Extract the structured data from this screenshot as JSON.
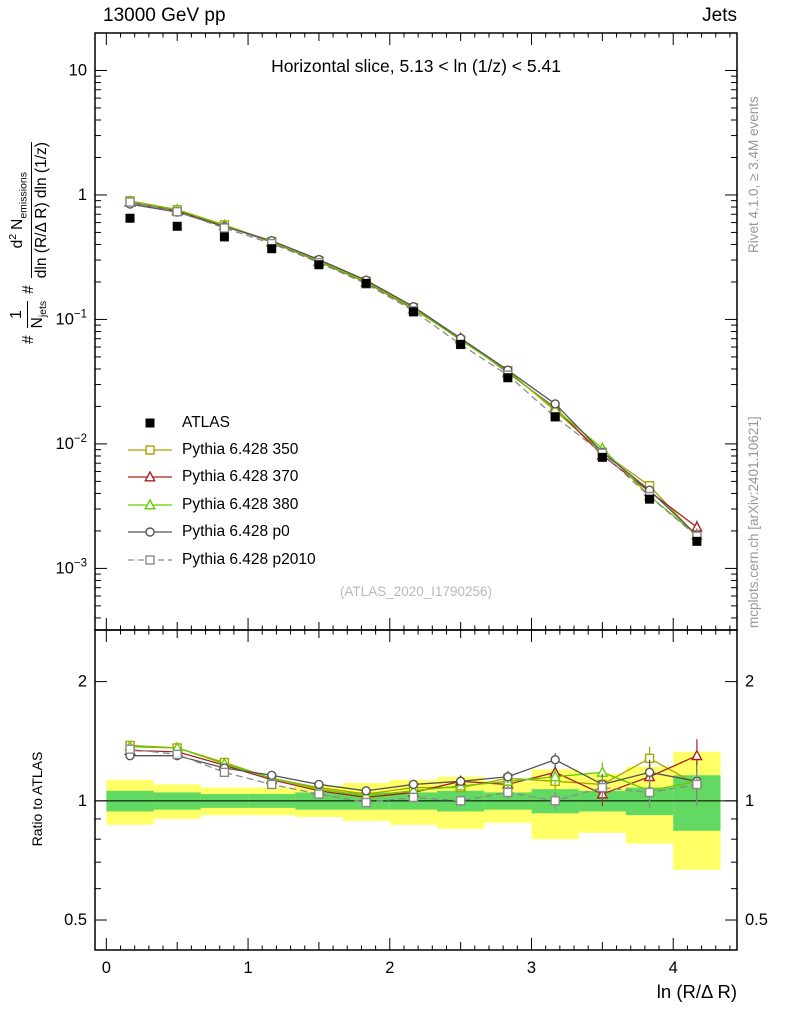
{
  "header": {
    "left": "13000 GeV pp",
    "right": "Jets"
  },
  "watermark": "(ATLAS_2020_I1790256)",
  "side_notes": {
    "top_right": "Rivet 4.1.0, ≥ 3.4M events",
    "bottom_right": "mcplots.cern.ch [arXiv:2401.10621]"
  },
  "axes": {
    "ylabel": {
      "hash1": "#",
      "frac1_num": "1",
      "frac1_den_base": "N",
      "frac1_den_sub": "jets",
      "hash2": "#",
      "frac2_num_a": "d",
      "frac2_num_sup": "2",
      "frac2_num_b": "N",
      "frac2_num_sub": "emissions",
      "frac2_den": "dln (R/Δ R) dln (1/z)",
      "flat": "1/N_jets d²N_emissions / dln (R/Δ R) dln (1/z)"
    }
  },
  "chart_data": {
    "type": "line",
    "title": "Horizontal slice, 5.13 < ln (1/z) < 5.41",
    "xlabel": "ln (R/Δ R)",
    "ylabel": "1/N_jets d²N_emissions / dln (R/Δ R) dln (1/z)",
    "xlim": [
      -0.08,
      4.45
    ],
    "bin_half_width": 0.1667,
    "x": [
      0.167,
      0.5,
      0.833,
      1.167,
      1.5,
      1.833,
      2.167,
      2.5,
      2.833,
      3.167,
      3.5,
      3.833,
      4.167
    ],
    "x_ticks": [
      {
        "v": 0,
        "t": "0"
      },
      {
        "v": 1,
        "t": "1"
      },
      {
        "v": 2,
        "t": "2"
      },
      {
        "v": 3,
        "t": "3"
      },
      {
        "v": 4,
        "t": "4"
      }
    ],
    "main_y_ticks": [
      {
        "v": 10,
        "t": "10"
      },
      {
        "v": 1,
        "t": "1"
      },
      {
        "v": 0.1,
        "t": "10",
        "e": "−1"
      },
      {
        "v": 0.01,
        "t": "10",
        "e": "−2"
      },
      {
        "v": 0.001,
        "t": "10",
        "e": "−3"
      }
    ],
    "ratio_y_ticks": [
      {
        "v": 2,
        "t": "2"
      },
      {
        "v": 1,
        "t": "1"
      },
      {
        "v": 0.5,
        "t": "0.5"
      }
    ],
    "atlas": {
      "name": "ATLAS",
      "color": "#000000",
      "marker": "filled-square",
      "values": [
        0.65,
        0.56,
        0.46,
        0.37,
        0.275,
        0.195,
        0.115,
        0.063,
        0.034,
        0.0165,
        0.0078,
        0.0036,
        0.00165
      ]
    },
    "series": [
      {
        "name": "Pythia 6.428 350",
        "color": "#a8a400",
        "marker": "open-square",
        "line": "solid",
        "ratio": [
          1.38,
          1.36,
          1.25,
          1.14,
          1.08,
          1.04,
          1.08,
          1.08,
          1.14,
          1.12,
          1.1,
          1.28,
          1.1
        ]
      },
      {
        "name": "Pythia 6.428 370",
        "color": "#aa2222",
        "marker": "open-triangle",
        "line": "solid",
        "ratio": [
          1.34,
          1.33,
          1.23,
          1.13,
          1.06,
          1.02,
          1.05,
          1.12,
          1.1,
          1.18,
          1.04,
          1.15,
          1.3
        ]
      },
      {
        "name": "Pythia 6.428 380",
        "color": "#66cc00",
        "marker": "open-triangle",
        "line": "solid",
        "ratio": [
          1.37,
          1.36,
          1.24,
          1.14,
          1.07,
          1.03,
          1.06,
          1.09,
          1.12,
          1.15,
          1.18,
          1.06,
          1.12
        ]
      },
      {
        "name": "Pythia 6.428 p0",
        "color": "#555555",
        "marker": "open-circle",
        "line": "solid",
        "ratio": [
          1.3,
          1.3,
          1.21,
          1.16,
          1.1,
          1.06,
          1.1,
          1.12,
          1.15,
          1.27,
          1.1,
          1.18,
          1.12
        ]
      },
      {
        "name": "Pythia 6.428 p2010",
        "color": "#8a8a8a",
        "marker": "open-square",
        "line": "dashed",
        "ratio": [
          1.35,
          1.31,
          1.18,
          1.1,
          1.04,
          0.99,
          1.02,
          1.0,
          1.05,
          1.0,
          1.08,
          1.05,
          1.1
        ]
      }
    ],
    "main_panel": {
      "y_scale": "log",
      "ylim": [
        0.00032,
        20
      ]
    },
    "ratio_panel": {
      "label": "Ratio to ATLAS",
      "y_scale": "log",
      "ylim": [
        0.42,
        2.7
      ],
      "band_colors": {
        "outer": "#ffff66",
        "inner": "#62d962"
      },
      "band_yellow": [
        0.13,
        0.1,
        0.08,
        0.08,
        0.09,
        0.11,
        0.13,
        0.15,
        0.12,
        0.2,
        0.17,
        0.22,
        0.33
      ],
      "band_green": [
        0.06,
        0.05,
        0.04,
        0.04,
        0.05,
        0.05,
        0.05,
        0.06,
        0.05,
        0.07,
        0.06,
        0.08,
        0.16
      ],
      "err": [
        0.02,
        0.02,
        0.02,
        0.02,
        0.02,
        0.025,
        0.03,
        0.03,
        0.04,
        0.05,
        0.07,
        0.09,
        0.13
      ]
    }
  }
}
